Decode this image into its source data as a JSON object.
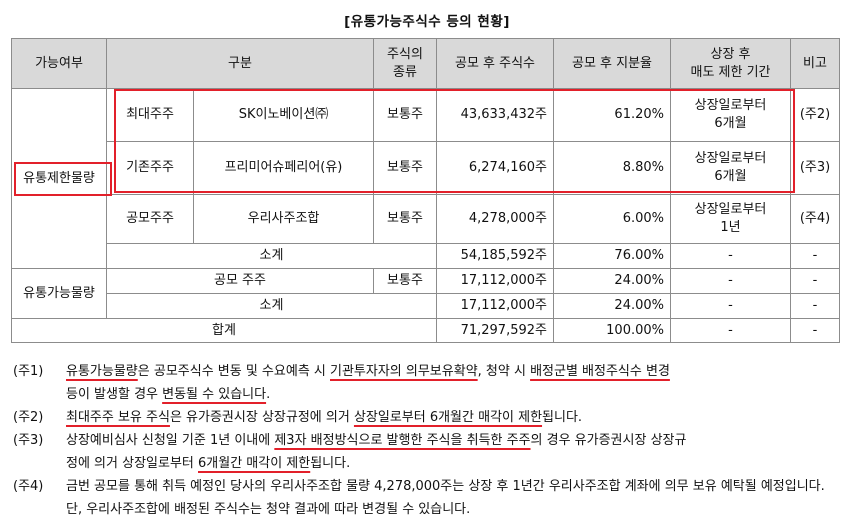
{
  "title": "[유통가능주식수 등의 현황]",
  "headers": [
    "가능여부",
    "구분",
    "주식의\n종류",
    "공모 후 주식수",
    "공모 후 지분율",
    "상장 후\n매도 제한 기간",
    "비고"
  ],
  "restricted_label": "유통제한물량",
  "rows": [
    {
      "cat": "최대주주",
      "name": "SK이노베이션㈜",
      "type": "보통주",
      "shares": "43,633,432주",
      "ratio": "61.20%",
      "period": "상장일로부터\n6개월",
      "note": "(주2)"
    },
    {
      "cat": "기존주주",
      "name": "프리미어슈페리어(유)",
      "type": "보통주",
      "shares": "6,274,160주",
      "ratio": "8.80%",
      "period": "상장일로부터\n6개월",
      "note": "(주3)"
    },
    {
      "cat": "공모주주",
      "name": "우리사주조합",
      "type": "보통주",
      "shares": "4,278,000주",
      "ratio": "6.00%",
      "period": "상장일로부터\n1년",
      "note": "(주4)"
    }
  ],
  "restricted_subtotal": {
    "label": "소계",
    "shares": "54,185,592주",
    "ratio": "76.00%",
    "period": "-",
    "note": "-"
  },
  "tradable_label": "유통가능물량",
  "tradable_row": {
    "name": "공모 주주",
    "type": "보통주",
    "shares": "17,112,000주",
    "ratio": "24.00%",
    "period": "-",
    "note": "-"
  },
  "tradable_subtotal": {
    "label": "소계",
    "shares": "17,112,000주",
    "ratio": "24.00%",
    "period": "-",
    "note": "-"
  },
  "total": {
    "label": "합계",
    "shares": "71,297,592주",
    "ratio": "100.00%",
    "period": "-",
    "note": "-"
  },
  "notes": {
    "n1": {
      "label": "(주1)",
      "a": "유통가능물량",
      "b": "은 공모주식수 변동 및 수요예측 시 ",
      "c": "기관투자자의 의무보유확약",
      "d": ", 청약 시 ",
      "e": "배정군별 배정주식수 변경",
      "f": "등이 발생할 경우 ",
      "g": "변동될 수 있습니다",
      "h": "."
    },
    "n2": {
      "label": "(주2)",
      "a": "최대주주 보유 주식",
      "b": "은 유가증권시장 상장규정에 의거 ",
      "c": "상장일로부터 6개월간 매각이 제한",
      "d": "됩니다."
    },
    "n3": {
      "label": "(주3)",
      "a": "상장예비심사 신청일 기준 1년 이내에 ",
      "b": "제3자 배정방식으로 발행한 주식을 취득한 주주",
      "c": "의 경우 유가증권시장 상장규",
      "d": "정에 의거 상장일로부터 ",
      "e": "6개월간 매각이 제한",
      "f": "됩니다."
    },
    "n4": {
      "label": "(주4)",
      "text": "금번 공모를 통해 취득 예정인 당사의 우리사주조합 물량 4,278,000주는 상장 후 1년간 우리사주조합 계좌에 의무 보유 예탁될 예정입니다. 단, 우리사주조합에 배정된 주식수는 청약 결과에 따라 변경될 수 있습니다."
    }
  },
  "colors": {
    "highlight": "#e2202a",
    "header_bg": "#d9d9d9",
    "border": "#8c8c8c"
  }
}
